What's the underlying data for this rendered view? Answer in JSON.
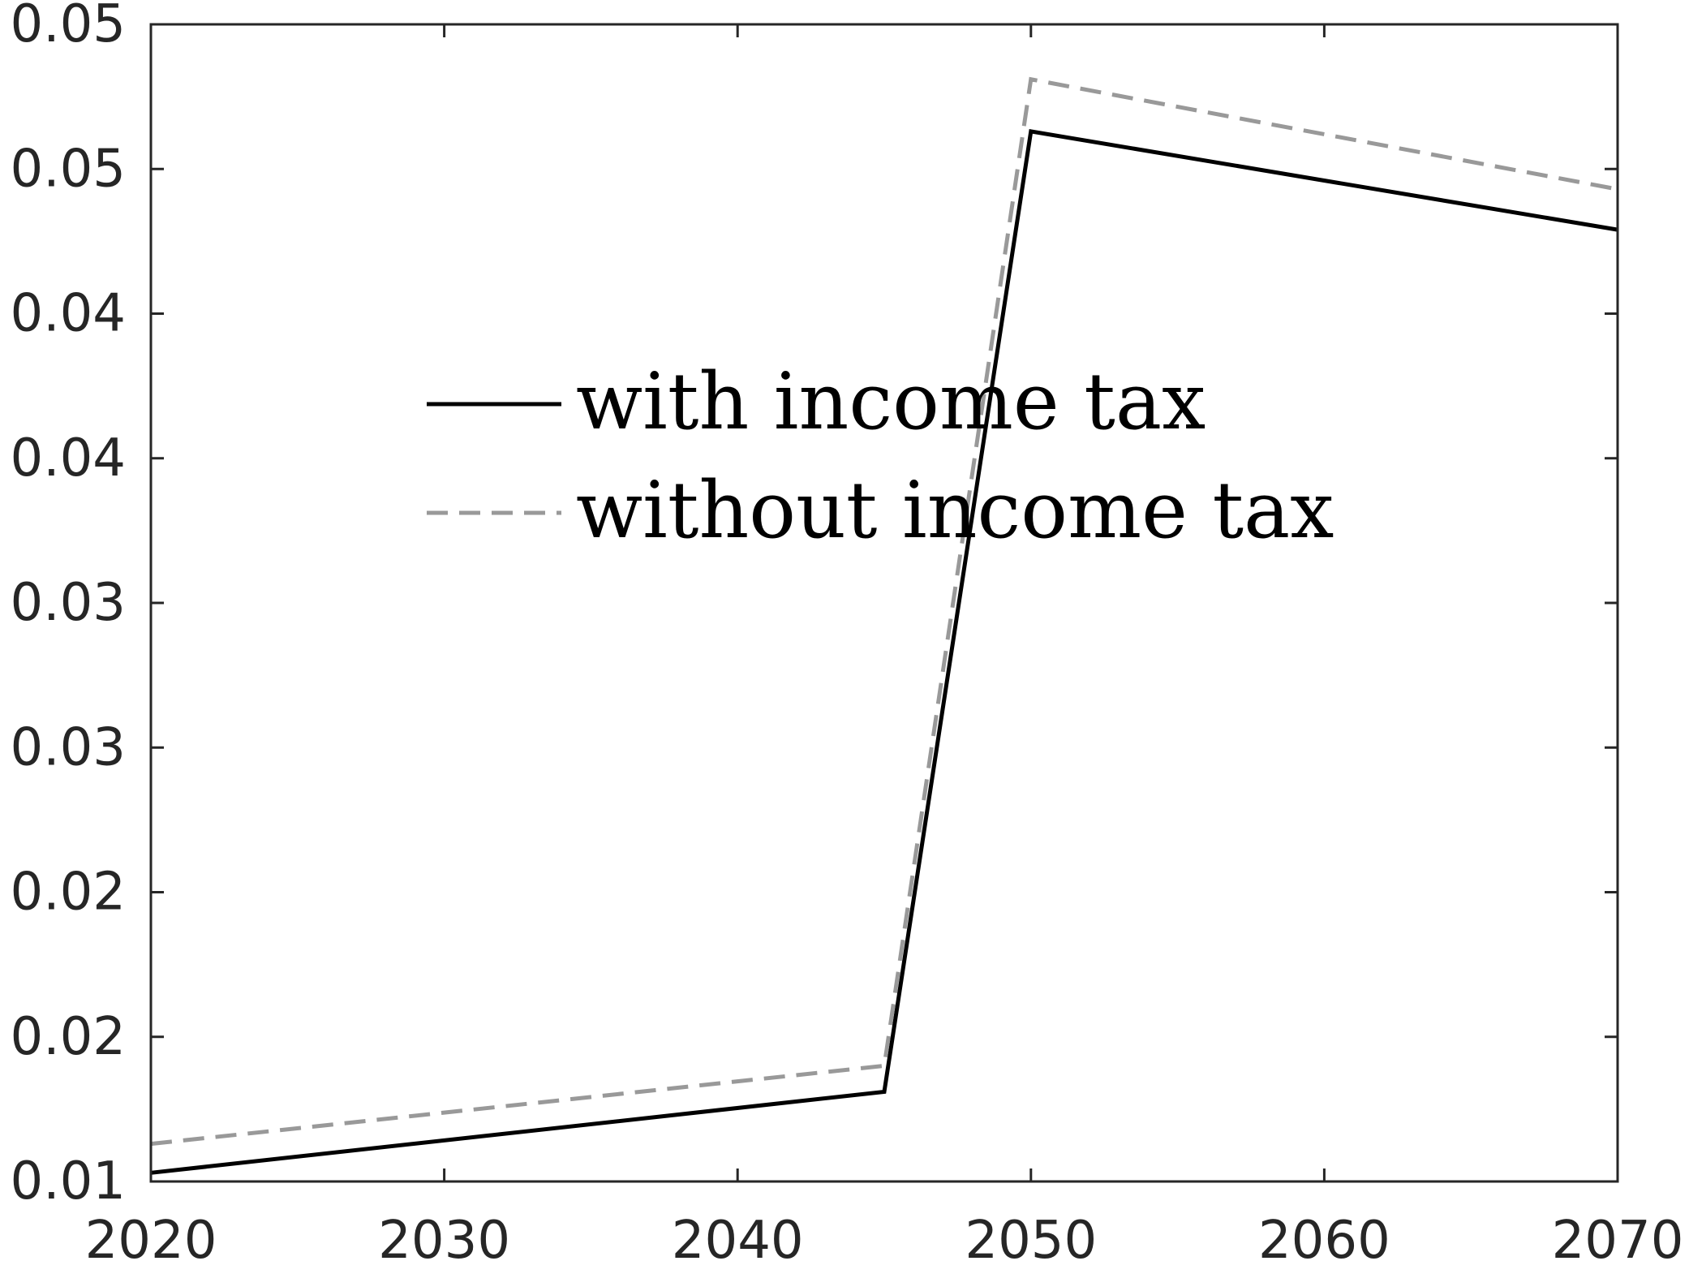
{
  "chart_data": {
    "type": "line",
    "title": "",
    "xlabel": "",
    "ylabel": "",
    "xlim": [
      2020,
      2070
    ],
    "ylim": [
      0.01,
      0.05
    ],
    "x_ticks": [
      2020,
      2030,
      2040,
      2050,
      2060,
      2070
    ],
    "x_tick_labels": [
      "2020",
      "2030",
      "2040",
      "2050",
      "2060",
      "2070"
    ],
    "y_ticks": [
      0.01,
      0.015,
      0.02,
      0.025,
      0.03,
      0.035,
      0.04,
      0.045,
      0.05
    ],
    "y_tick_labels": [
      "0.01",
      "0.02",
      "0.02",
      "0.03",
      "0.03",
      "0.04",
      "0.04",
      "0.05",
      "0.05"
    ],
    "grid": false,
    "legend_position": "center-left",
    "series": [
      {
        "name": "with income tax",
        "color": "#000000",
        "style": "solid",
        "x": [
          2020,
          2045,
          2050,
          2070
        ],
        "values": [
          0.0103,
          0.0131,
          0.0463,
          0.0429
        ]
      },
      {
        "name": "without income tax",
        "color": "#999999",
        "style": "dashed",
        "x": [
          2020,
          2045,
          2050,
          2070
        ],
        "values": [
          0.0113,
          0.014,
          0.0481,
          0.0443
        ]
      }
    ]
  }
}
